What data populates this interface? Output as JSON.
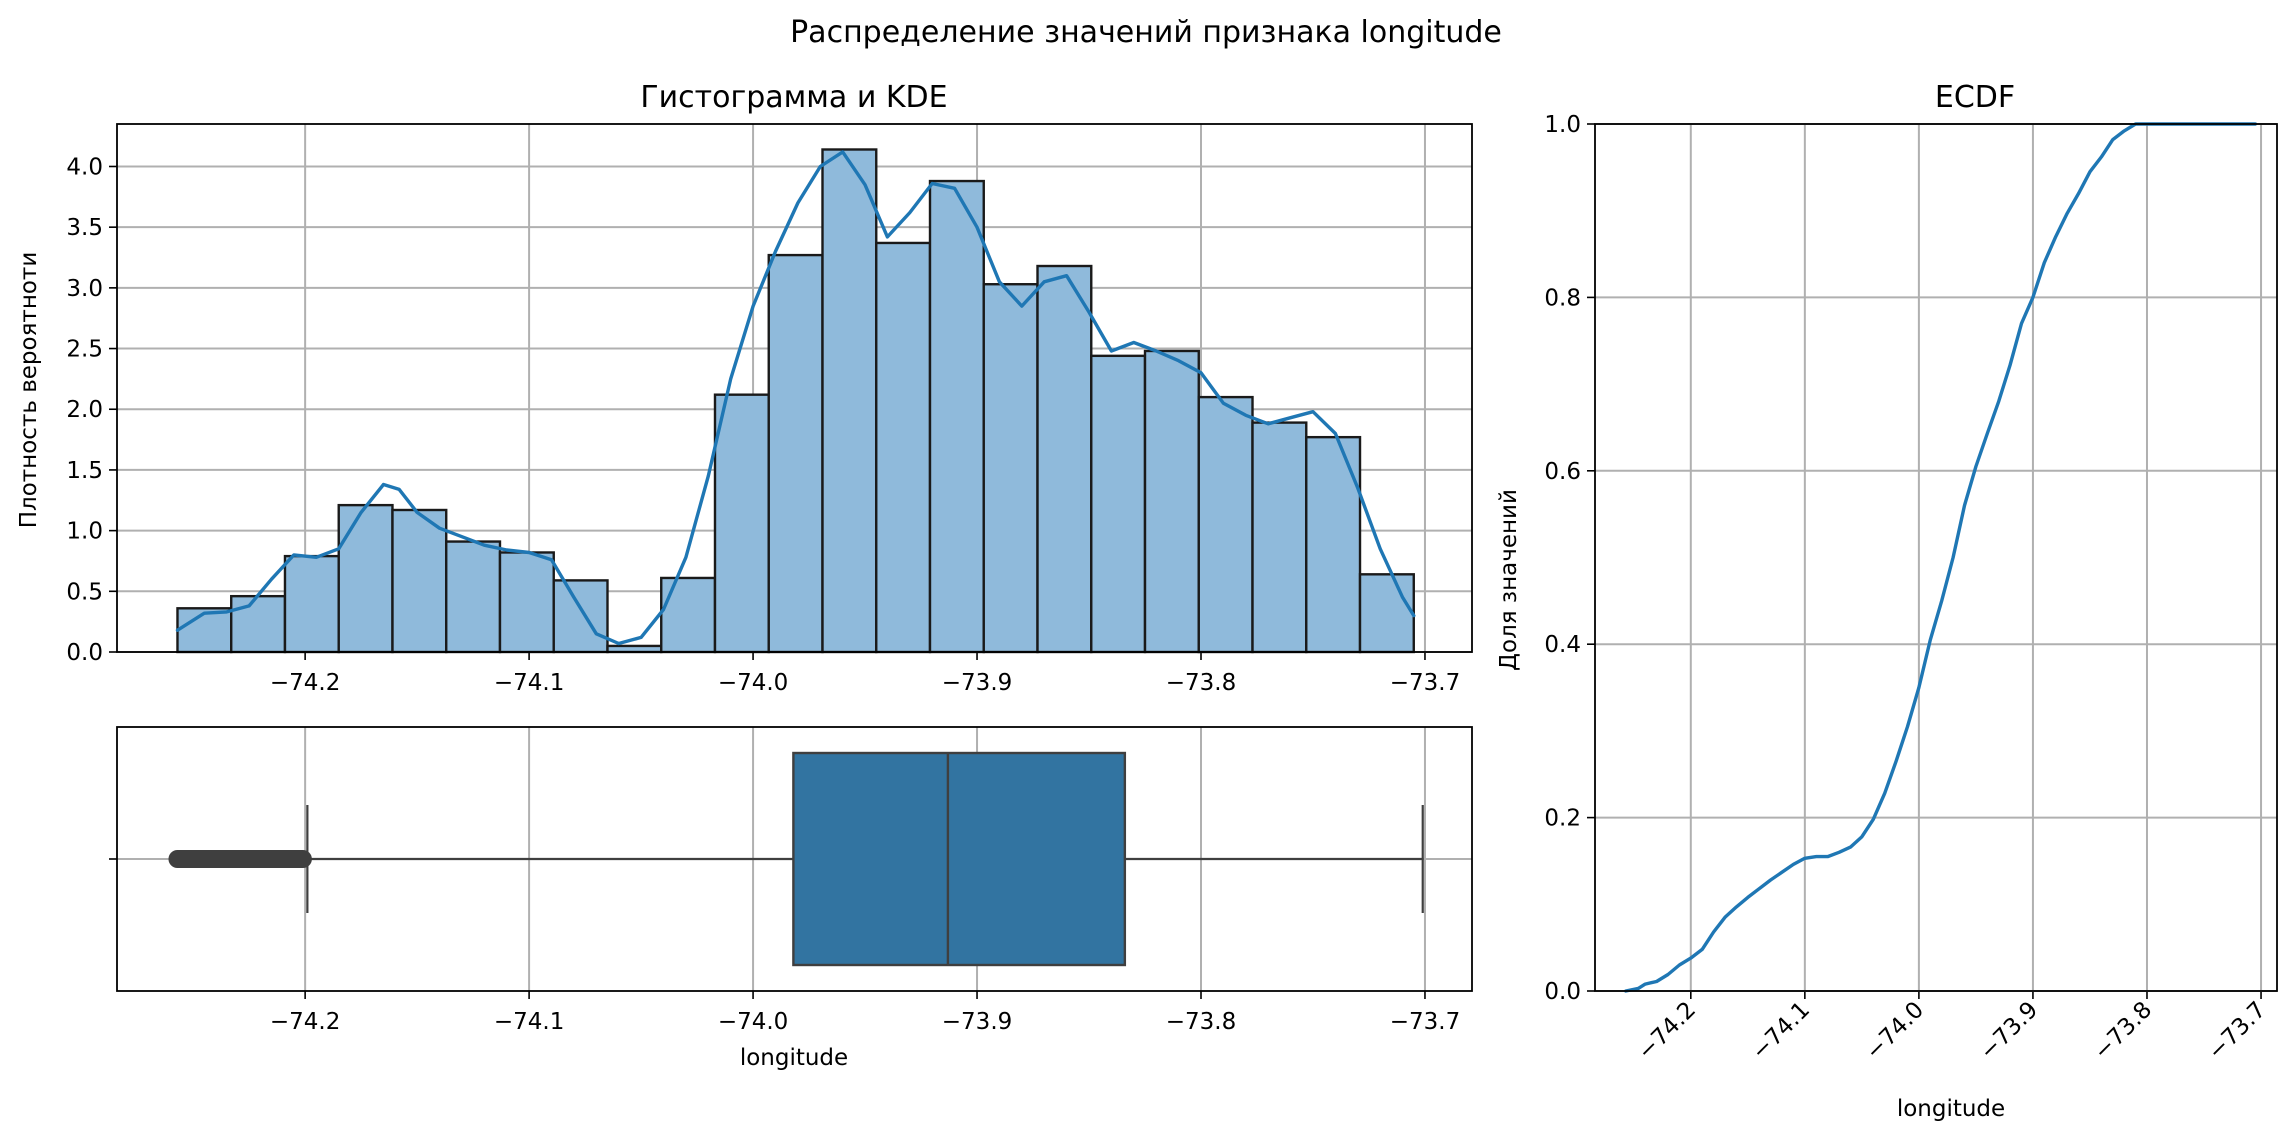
{
  "figure": {
    "suptitle": "Распределение значений признака longitude"
  },
  "chart_data": [
    {
      "type": "histogram",
      "title": "Гистограмма и KDE",
      "xlabel": "",
      "ylabel": "Плотность вероятноти",
      "xlim": [
        -74.284,
        -73.679
      ],
      "ylim": [
        0,
        4.35
      ],
      "xticks": [
        -74.2,
        -74.1,
        -74.0,
        -73.9,
        -73.8,
        -73.7
      ],
      "xtick_labels": [
        "−74.2",
        "−74.1",
        "−74.0",
        "−73.9",
        "−73.8",
        "−73.7"
      ],
      "yticks": [
        0.0,
        0.5,
        1.0,
        1.5,
        2.0,
        2.5,
        3.0,
        3.5,
        4.0
      ],
      "ytick_labels": [
        "0.0",
        "0.5",
        "1.0",
        "1.5",
        "2.0",
        "2.5",
        "3.0",
        "3.5",
        "4.0"
      ],
      "grid": true,
      "bar_color": "#8fbadb",
      "bar_edge_color": "#1a1a1a",
      "kde_color": "#1f77b4",
      "bin_edges": [
        -74.257,
        -74.233,
        -74.209,
        -74.185,
        -74.161,
        -74.137,
        -74.113,
        -74.089,
        -74.065,
        -74.041,
        -74.017,
        -73.993,
        -73.969,
        -73.945,
        -73.921,
        -73.897,
        -73.873,
        -73.849,
        -73.825,
        -73.801,
        -73.777,
        -73.753,
        -73.729,
        -73.705
      ],
      "values": [
        0.36,
        0.46,
        0.79,
        1.21,
        1.17,
        0.91,
        0.82,
        0.59,
        0.05,
        0.61,
        2.12,
        3.27,
        4.14,
        3.37,
        3.88,
        3.03,
        3.18,
        2.44,
        2.48,
        2.1,
        1.89,
        1.77,
        0.64
      ],
      "kde": {
        "x": [
          -74.257,
          -74.245,
          -74.235,
          -74.225,
          -74.215,
          -74.205,
          -74.195,
          -74.185,
          -74.175,
          -74.165,
          -74.158,
          -74.15,
          -74.14,
          -74.13,
          -74.12,
          -74.11,
          -74.1,
          -74.09,
          -74.08,
          -74.07,
          -74.06,
          -74.05,
          -74.04,
          -74.03,
          -74.02,
          -74.01,
          -74.0,
          -73.99,
          -73.98,
          -73.97,
          -73.96,
          -73.95,
          -73.94,
          -73.93,
          -73.92,
          -73.91,
          -73.9,
          -73.89,
          -73.88,
          -73.87,
          -73.86,
          -73.85,
          -73.84,
          -73.83,
          -73.82,
          -73.81,
          -73.8,
          -73.79,
          -73.78,
          -73.77,
          -73.76,
          -73.75,
          -73.74,
          -73.73,
          -73.72,
          -73.71,
          -73.705
        ],
        "y": [
          0.18,
          0.32,
          0.33,
          0.38,
          0.6,
          0.8,
          0.78,
          0.85,
          1.15,
          1.38,
          1.34,
          1.15,
          1.02,
          0.95,
          0.88,
          0.84,
          0.82,
          0.76,
          0.45,
          0.15,
          0.07,
          0.12,
          0.35,
          0.78,
          1.45,
          2.25,
          2.85,
          3.3,
          3.7,
          4.0,
          4.12,
          3.85,
          3.42,
          3.62,
          3.86,
          3.82,
          3.5,
          3.05,
          2.85,
          3.05,
          3.1,
          2.8,
          2.48,
          2.55,
          2.48,
          2.4,
          2.3,
          2.05,
          1.95,
          1.88,
          1.93,
          1.98,
          1.8,
          1.35,
          0.85,
          0.45,
          0.3
        ]
      }
    },
    {
      "type": "boxplot",
      "title": "",
      "xlabel": "longitude",
      "ylabel": "",
      "xlim": [
        -74.284,
        -73.679
      ],
      "xticks": [
        -74.2,
        -74.1,
        -74.0,
        -73.9,
        -73.8,
        -73.7
      ],
      "xtick_labels": [
        "−74.2",
        "−74.1",
        "−74.0",
        "−73.9",
        "−73.8",
        "−73.7"
      ],
      "grid": true,
      "box_color": "#3274a1",
      "line_color": "#3f3f3f",
      "whisker_low": -74.199,
      "q1": -73.982,
      "median": -73.913,
      "q3": -73.834,
      "whisker_high": -73.701,
      "outliers_from": -74.257,
      "outliers_to": -74.201
    },
    {
      "type": "line",
      "title": "ECDF",
      "xlabel": "longitude",
      "ylabel": "Доля значений",
      "xlim": [
        -74.284,
        -73.686
      ],
      "ylim": [
        0,
        1.0
      ],
      "xticks": [
        -74.2,
        -74.1,
        -74.0,
        -73.9,
        -73.8,
        -73.7
      ],
      "xtick_labels": [
        "−74.2",
        "−74.1",
        "−74.0",
        "−73.9",
        "−73.8",
        "−73.7"
      ],
      "yticks": [
        0.0,
        0.2,
        0.4,
        0.6,
        0.8,
        1.0
      ],
      "ytick_labels": [
        "0.0",
        "0.2",
        "0.4",
        "0.6",
        "0.8",
        "1.0"
      ],
      "grid": true,
      "line_color": "#1f77b4",
      "x": [
        -74.257,
        -74.246,
        -74.24,
        -74.23,
        -74.22,
        -74.21,
        -74.2,
        -74.19,
        -74.18,
        -74.17,
        -74.16,
        -74.15,
        -74.14,
        -74.13,
        -74.12,
        -74.11,
        -74.1,
        -74.09,
        -74.08,
        -74.07,
        -74.06,
        -74.05,
        -74.04,
        -74.03,
        -74.02,
        -74.01,
        -74.0,
        -73.99,
        -73.98,
        -73.97,
        -73.96,
        -73.95,
        -73.94,
        -73.93,
        -73.92,
        -73.91,
        -73.9,
        -73.89,
        -73.88,
        -73.87,
        -73.86,
        -73.85,
        -73.84,
        -73.83,
        -73.82,
        -73.81,
        -73.8,
        -73.79,
        -73.78,
        -73.77,
        -73.76,
        -73.75,
        -73.74,
        -73.73,
        -73.72,
        -73.71,
        -73.705
      ],
      "y": [
        0.0,
        0.003,
        0.008,
        0.011,
        0.019,
        0.03,
        0.038,
        0.048,
        0.068,
        0.085,
        0.097,
        0.108,
        0.118,
        0.128,
        0.137,
        0.146,
        0.153,
        0.155,
        0.155,
        0.16,
        0.166,
        0.178,
        0.198,
        0.228,
        0.265,
        0.305,
        0.35,
        0.405,
        0.45,
        0.5,
        0.56,
        0.605,
        0.643,
        0.68,
        0.722,
        0.77,
        0.8,
        0.84,
        0.87,
        0.897,
        0.92,
        0.945,
        0.962,
        0.982,
        0.992,
        1.0,
        1.0,
        1.0,
        1.0,
        1.0,
        1.0,
        1.0,
        1.0,
        1.0,
        1.0,
        1.0,
        1.0
      ]
    }
  ]
}
